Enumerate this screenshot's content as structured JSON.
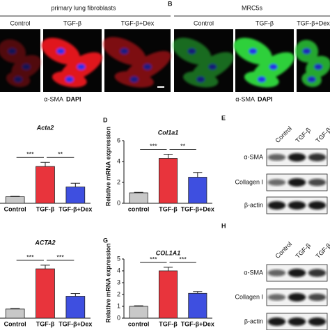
{
  "imaging": [
    {
      "title": "primary lung fibroblasts",
      "conditions": [
        "Control",
        "TGF-β",
        "TGF-β+Dex"
      ],
      "stains": [
        "α-SMA",
        "DAPI"
      ]
    },
    {
      "label": "B",
      "title": "MRC5s",
      "conditions": [
        "Control",
        "TGF-β",
        "TGF-β+Dex"
      ],
      "stains": [
        "α-SMA",
        "DAPI"
      ]
    }
  ],
  "chart_data": [
    {
      "type": "bar",
      "title": "Acta2",
      "categories": [
        "Control",
        "TGF-β",
        "TGF-β+Dex"
      ],
      "values": [
        0.8,
        4.5,
        2.0
      ],
      "errors": [
        0.05,
        0.5,
        0.45
      ],
      "colors": [
        "#c8c8c8",
        "#e8343c",
        "#3e4fe0"
      ],
      "ylim": [
        0,
        8
      ],
      "annotations": [
        "***",
        "**"
      ]
    },
    {
      "type": "bar",
      "panel": "D",
      "title": "Col1a1",
      "ylabel": "Relative mRNA expression",
      "categories": [
        "control",
        "TGF-β",
        "TGF-β+Dex"
      ],
      "values": [
        1.0,
        4.3,
        2.5
      ],
      "errors": [
        0.05,
        0.4,
        0.45
      ],
      "colors": [
        "#c8c8c8",
        "#e8343c",
        "#3e4fe0"
      ],
      "ylim": [
        0,
        6
      ],
      "yticks": [
        0,
        2,
        4,
        6
      ],
      "annotations": [
        "***",
        "**"
      ]
    },
    {
      "type": "bar",
      "title": "ACTA2",
      "categories": [
        "Control",
        "TGF-β",
        "TGF-β+Dex"
      ],
      "values": [
        1.0,
        5.4,
        2.4
      ],
      "errors": [
        0.05,
        0.4,
        0.3
      ],
      "colors": [
        "#c8c8c8",
        "#e8343c",
        "#3e4fe0"
      ],
      "ylim": [
        0,
        8
      ],
      "annotations": [
        "***",
        "***"
      ]
    },
    {
      "type": "bar",
      "panel": "G",
      "title": "COL1A1",
      "ylabel": "Relative mRNA expression",
      "categories": [
        "control",
        "TGF-β",
        "TGF-β+Dex"
      ],
      "values": [
        1.0,
        4.0,
        2.1
      ],
      "errors": [
        0.05,
        0.3,
        0.15
      ],
      "colors": [
        "#c8c8c8",
        "#e8343c",
        "#3e4fe0"
      ],
      "ylim": [
        0,
        5
      ],
      "yticks": [
        0,
        1,
        2,
        3,
        4,
        5
      ],
      "annotations": [
        "***",
        "***"
      ]
    }
  ],
  "blots": [
    {
      "label": "E",
      "lanes": [
        "Control",
        "TGF-β",
        "TGF-β+Dex"
      ],
      "rows": [
        "α-SMA",
        "Collagen I",
        "β-actin"
      ]
    },
    {
      "label": "H",
      "lanes": [
        "Control",
        "TGF-β",
        "TGF-β+Dex"
      ],
      "rows": [
        "α-SMA",
        "Collagen I",
        "β-actin"
      ]
    }
  ]
}
